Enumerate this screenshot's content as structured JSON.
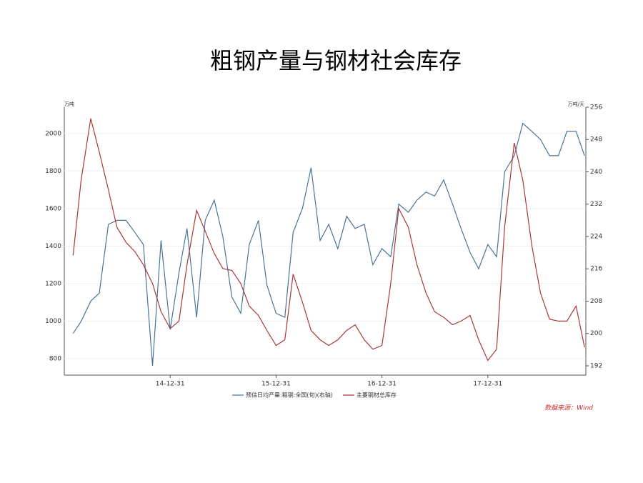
{
  "chart_data": {
    "type": "line",
    "title": "粗钢产量与钢材社会库存",
    "y_label": "万吨",
    "y2_label": "万吨/天",
    "source": "数据来源：Wind",
    "x": [
      "14-01-31",
      "14-02-28",
      "14-03-31",
      "14-04-30",
      "14-05-31",
      "14-06-30",
      "14-07-31",
      "14-08-31",
      "14-09-30",
      "14-10-31",
      "14-11-30",
      "14-12-31",
      "15-01-31",
      "15-02-28",
      "15-03-31",
      "15-04-30",
      "15-05-31",
      "15-06-30",
      "15-07-31",
      "15-08-31",
      "15-09-30",
      "15-10-31",
      "15-11-30",
      "15-12-31",
      "16-01-31",
      "16-02-29",
      "16-03-31",
      "16-04-30",
      "16-05-31",
      "16-06-30",
      "16-07-31",
      "16-08-31",
      "16-09-30",
      "16-10-31",
      "16-11-30",
      "16-12-31",
      "17-01-31",
      "17-02-28",
      "17-03-31",
      "17-04-30",
      "17-05-31",
      "17-06-30",
      "17-07-31",
      "17-08-31",
      "17-09-30",
      "17-10-31",
      "17-11-30",
      "17-12-31",
      "18-01-31",
      "18-02-28",
      "18-03-31",
      "18-04-30",
      "18-05-31",
      "18-06-30",
      "18-07-31",
      "18-08-31",
      "18-09-30",
      "18-10-31",
      "18-11-30"
    ],
    "xlim": [
      "13-12-31",
      "18-12-04"
    ],
    "xticks": [
      "14-12-31",
      "15-12-31",
      "16-12-31",
      "17-12-31"
    ],
    "ylim": [
      712,
      2140
    ],
    "yticks": [
      800,
      1000,
      1200,
      1400,
      1600,
      1800,
      2000
    ],
    "y2lim": [
      189.7,
      256
    ],
    "y2ticks": [
      192,
      200,
      208,
      216,
      224,
      232,
      240,
      248,
      256
    ],
    "series": [
      {
        "name": "预估日均产量:粗钢:全国(旬)(右轴)",
        "color": "#4a7396",
        "axis": "y2",
        "values": [
          200,
          203,
          208,
          210,
          227,
          228,
          228,
          225,
          222,
          192,
          223,
          201,
          215,
          226,
          204,
          228,
          233,
          224,
          209,
          205,
          222,
          228,
          212,
          205,
          204,
          225,
          231,
          241,
          223,
          227,
          221,
          229,
          226,
          227,
          217,
          221,
          219,
          232,
          230,
          233,
          235,
          234,
          238,
          232,
          226,
          220,
          216,
          222,
          219,
          240,
          244,
          252,
          250,
          248,
          244,
          244,
          250,
          250,
          244
        ]
      },
      {
        "name": "主要钢材总库存",
        "color": "#a8383b",
        "axis": "y",
        "values": [
          1350,
          1750,
          2080,
          1900,
          1700,
          1500,
          1420,
          1370,
          1300,
          1200,
          1050,
          960,
          1000,
          1300,
          1590,
          1480,
          1360,
          1280,
          1270,
          1200,
          1080,
          1030,
          950,
          870,
          900,
          1250,
          1100,
          950,
          900,
          870,
          900,
          950,
          980,
          900,
          850,
          870,
          1200,
          1600,
          1500,
          1300,
          1150,
          1050,
          1020,
          980,
          1000,
          1030,
          900,
          790,
          850,
          1500,
          1950,
          1750,
          1400,
          1150,
          1010,
          1000,
          1000,
          1080,
          860
        ]
      }
    ]
  }
}
